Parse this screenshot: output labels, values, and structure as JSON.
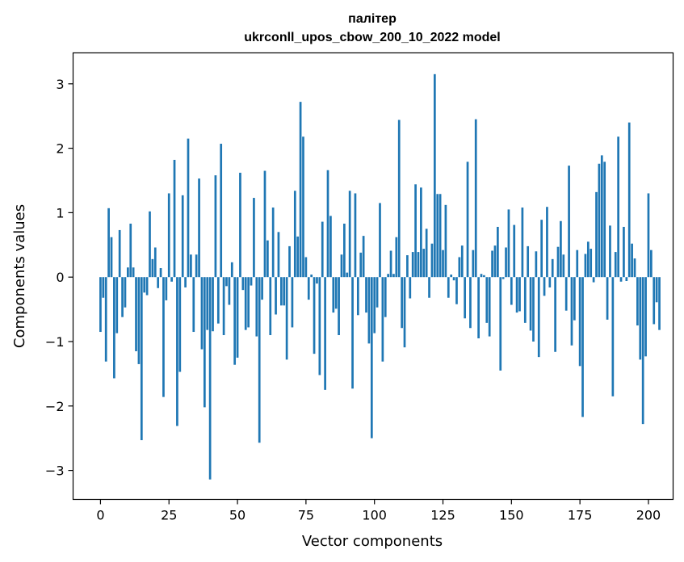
{
  "chart_data": {
    "type": "bar",
    "title_line1": "палітер",
    "title_line2": "ukrconll_upos_cbow_200_10_2022 model",
    "xlabel": "Vector components",
    "ylabel": "Components values",
    "xlim": [
      -10,
      209
    ],
    "ylim": [
      -3.45,
      3.48
    ],
    "xticks": [
      0,
      25,
      50,
      75,
      100,
      125,
      150,
      175,
      200
    ],
    "xtick_labels": [
      "0",
      "25",
      "50",
      "75",
      "100",
      "125",
      "150",
      "175",
      "200"
    ],
    "yticks": [
      -3,
      -2,
      -1,
      0,
      1,
      2,
      3
    ],
    "ytick_labels": [
      "−3",
      "−2",
      "−1",
      "0",
      "1",
      "2",
      "3"
    ],
    "bar_color": "#1f77b4",
    "grid": false,
    "x_start": 0,
    "values": [
      -0.85,
      -0.32,
      -1.31,
      1.07,
      0.62,
      -1.57,
      -0.87,
      0.73,
      -0.62,
      -0.47,
      0.15,
      0.83,
      0.15,
      -1.15,
      -1.35,
      -2.53,
      -0.24,
      -0.28,
      1.02,
      0.28,
      0.46,
      -0.17,
      0.14,
      -1.86,
      -0.36,
      1.3,
      -0.07,
      1.82,
      -2.31,
      -1.47,
      1.27,
      -0.16,
      2.15,
      0.35,
      -0.85,
      0.35,
      1.53,
      -1.12,
      -2.02,
      -0.82,
      -3.14,
      -0.84,
      1.58,
      -0.72,
      2.07,
      -0.9,
      -0.14,
      -0.43,
      0.23,
      -1.36,
      -1.25,
      1.62,
      -0.2,
      -0.82,
      -0.78,
      -0.13,
      1.23,
      -0.92,
      -2.57,
      -0.35,
      1.65,
      0.57,
      -0.9,
      1.08,
      -0.58,
      0.7,
      -0.44,
      -0.44,
      -1.28,
      0.48,
      -0.78,
      1.34,
      0.63,
      2.72,
      2.18,
      0.31,
      -0.35,
      0.04,
      -1.19,
      -0.1,
      -1.52,
      0.86,
      -1.75,
      1.66,
      0.95,
      -0.55,
      -0.49,
      -0.9,
      0.35,
      0.83,
      0.07,
      1.34,
      -1.73,
      1.3,
      -0.59,
      0.38,
      0.64,
      -0.55,
      -1.03,
      -2.5,
      -0.87,
      -0.47,
      1.15,
      -1.31,
      -0.62,
      0.05,
      0.41,
      0.05,
      0.62,
      2.44,
      -0.79,
      -1.09,
      0.34,
      -0.33,
      0.39,
      1.44,
      0.39,
      1.39,
      0.44,
      0.75,
      -0.32,
      0.52,
      3.15,
      1.29,
      1.29,
      0.42,
      1.12,
      -0.32,
      0.04,
      -0.05,
      -0.42,
      0.31,
      0.49,
      -0.64,
      1.79,
      -0.79,
      0.42,
      2.45,
      -0.95,
      0.05,
      0.03,
      -0.71,
      -0.92,
      0.41,
      0.49,
      0.78,
      -1.45,
      -0.03,
      0.46,
      1.05,
      -0.43,
      0.81,
      -0.55,
      -0.53,
      1.08,
      -0.71,
      0.48,
      -0.83,
      -1.0,
      0.4,
      -1.24,
      0.89,
      -0.29,
      1.09,
      -0.16,
      0.28,
      -1.16,
      0.47,
      0.87,
      0.35,
      -0.52,
      1.73,
      -1.06,
      -0.67,
      0.42,
      -1.38,
      -2.17,
      0.36,
      0.55,
      0.44,
      -0.08,
      1.32,
      1.76,
      1.89,
      1.79,
      -0.66,
      0.8,
      -1.85,
      0.39,
      2.18,
      -0.07,
      0.78,
      -0.06,
      2.4,
      0.52,
      0.29,
      -0.75,
      -1.28,
      -2.28,
      -1.23,
      1.3,
      0.42,
      -0.73,
      -0.39,
      -0.82
    ]
  }
}
